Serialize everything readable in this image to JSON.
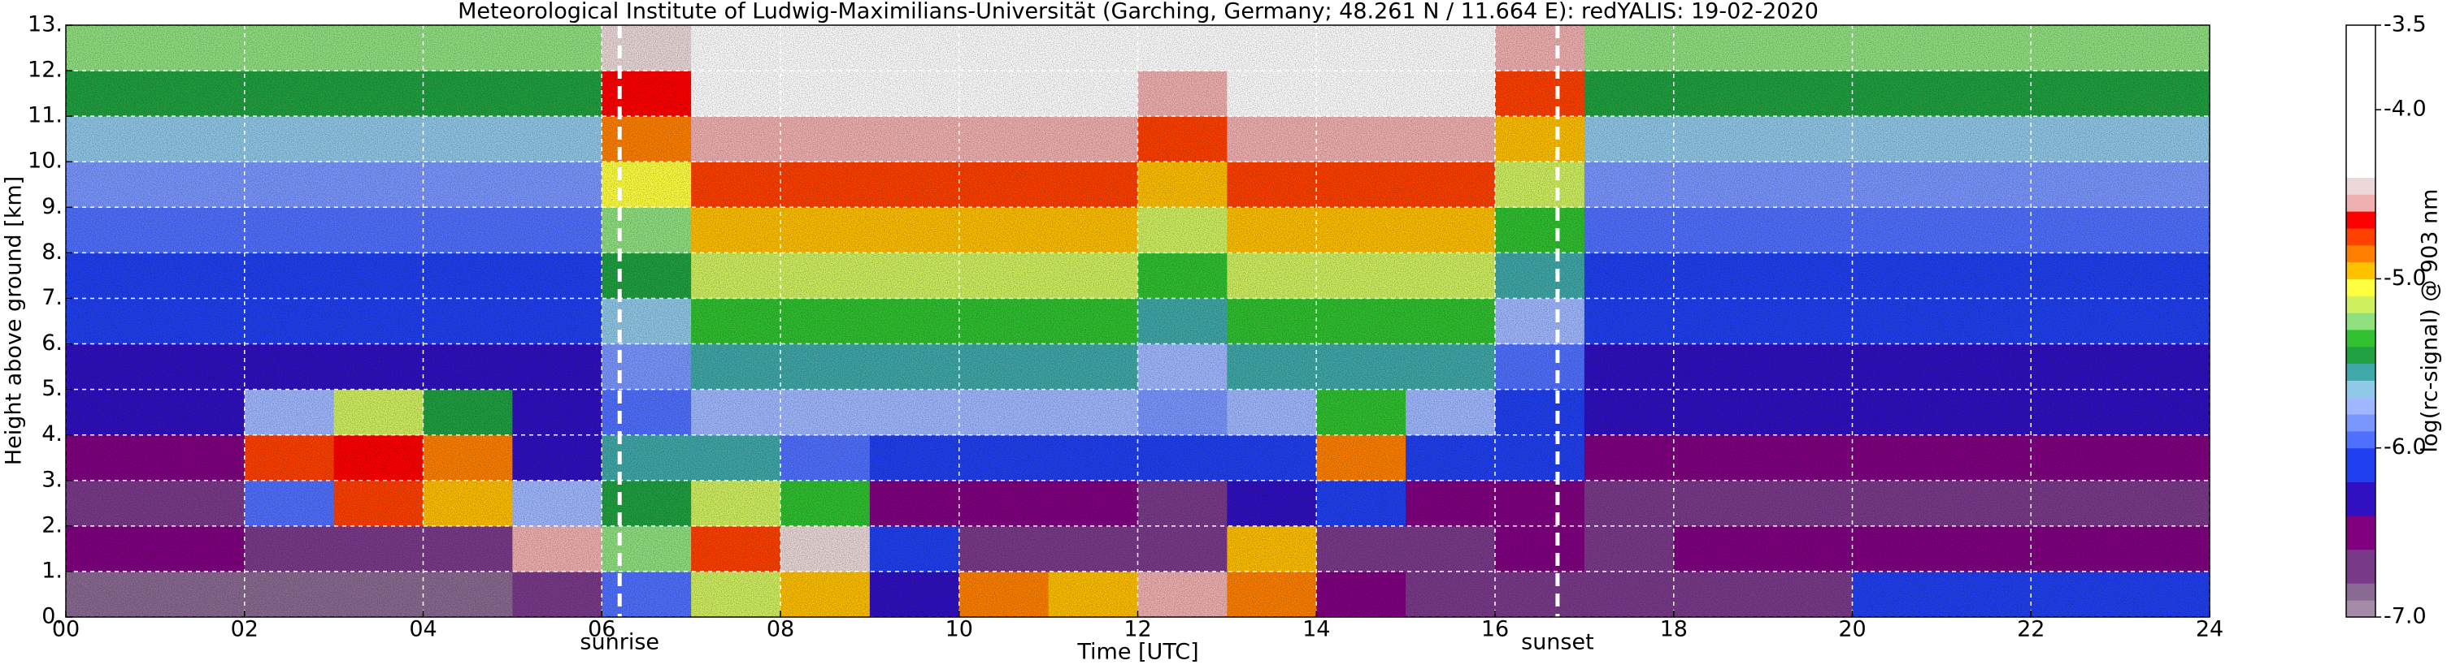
{
  "chart_data": {
    "type": "heatmap",
    "title": "Meteorological Institute of Ludwig-Maximilians-Universität (Garching, Germany; 48.261 N / 11.664 E):    redYALIS: 19-02-2020",
    "x_label": "Time [UTC]",
    "y_label": "Height above ground [km]",
    "colorbar_label": "log(rc-signal) @ 903 nm",
    "xlim": [
      0,
      24
    ],
    "xticks": [
      {
        "value": 0,
        "label": "00"
      },
      {
        "value": 2,
        "label": "02"
      },
      {
        "value": 4,
        "label": "04"
      },
      {
        "value": 6,
        "label": "06"
      },
      {
        "value": 8,
        "label": "08"
      },
      10,
      12,
      14,
      16,
      18,
      20,
      22,
      24
    ],
    "ylim": [
      0,
      13
    ],
    "yticks": [
      {
        "value": 0,
        "label": "0."
      },
      {
        "value": 1,
        "label": "1."
      },
      {
        "value": 2,
        "label": "2."
      },
      {
        "value": 3,
        "label": "3."
      },
      {
        "value": 4,
        "label": "4."
      },
      {
        "value": 5,
        "label": "5."
      },
      {
        "value": 6,
        "label": "6."
      },
      {
        "value": 7,
        "label": "7."
      },
      {
        "value": 8,
        "label": "8."
      },
      {
        "value": 9,
        "label": "9."
      },
      {
        "value": 10,
        "label": "10."
      },
      {
        "value": 11,
        "label": "11."
      },
      {
        "value": 12,
        "label": "12."
      },
      {
        "value": 13,
        "label": "13."
      }
    ],
    "zlim": [
      -7,
      -3.5
    ],
    "zticks": [
      -3.5,
      {
        "value": -4,
        "label": "-4.0"
      },
      {
        "value": -5,
        "label": "-5.0"
      },
      {
        "value": -6,
        "label": "-6.0"
      },
      {
        "value": -7,
        "label": "-7.0"
      }
    ],
    "grid": true,
    "colorscale": [
      [
        -7.0,
        "#a48ca8"
      ],
      [
        -6.9,
        "#8a6a92"
      ],
      [
        -6.8,
        "#7a3a8a"
      ],
      [
        -6.6,
        "#800080"
      ],
      [
        -6.4,
        "#3010c0"
      ],
      [
        -6.2,
        "#2040f0"
      ],
      [
        -6.0,
        "#5070ff"
      ],
      [
        -5.9,
        "#7a96ff"
      ],
      [
        -5.8,
        "#a0b8ff"
      ],
      [
        -5.7,
        "#90c8e8"
      ],
      [
        -5.6,
        "#40a8a8"
      ],
      [
        -5.5,
        "#20a040"
      ],
      [
        -5.4,
        "#30c030"
      ],
      [
        -5.3,
        "#90e080"
      ],
      [
        -5.2,
        "#d0f060"
      ],
      [
        -5.1,
        "#ffff40"
      ],
      [
        -5.0,
        "#ffc000"
      ],
      [
        -4.9,
        "#ff8000"
      ],
      [
        -4.8,
        "#ff4000"
      ],
      [
        -4.7,
        "#ff0000"
      ],
      [
        -4.6,
        "#f0b0b0"
      ],
      [
        -4.5,
        "#ecd8d8"
      ],
      [
        -4.4,
        "#ffffff"
      ]
    ],
    "annotations": [
      {
        "text": "sunrise",
        "x": 6.2
      },
      {
        "text": "sunset",
        "x": 16.7
      }
    ],
    "x": [
      0.5,
      1.5,
      2.5,
      3.5,
      4.5,
      5.5,
      6.5,
      7.5,
      8.5,
      9.5,
      10.5,
      11.5,
      12.5,
      13.5,
      14.5,
      15.5,
      16.5,
      17.5,
      18.5,
      19.5,
      20.5,
      21.5,
      22.5,
      23.5
    ],
    "y": [
      0.5,
      1.5,
      2.5,
      3.5,
      4.5,
      5.5,
      6.5,
      7.5,
      8.5,
      9.5,
      10.5,
      11.5,
      12.5
    ],
    "z": [
      [
        -6.9,
        -6.9,
        -6.9,
        -6.9,
        -6.9,
        -6.8,
        -6.0,
        -5.2,
        -5.0,
        -6.3,
        -4.9,
        -5.0,
        -4.6,
        -4.9,
        -6.6,
        -6.8,
        -6.8,
        -6.8,
        -6.8,
        -6.8,
        -6.2,
        -6.1,
        -6.1,
        -6.2
      ],
      [
        -6.6,
        -6.6,
        -6.7,
        -6.8,
        -6.8,
        -4.6,
        -5.3,
        -4.8,
        -4.5,
        -6.2,
        -6.7,
        -6.8,
        -6.7,
        -5.0,
        -6.8,
        -6.7,
        -6.6,
        -6.7,
        -6.5,
        -6.5,
        -6.5,
        -6.5,
        -6.5,
        -6.5
      ],
      [
        -6.8,
        -6.8,
        -6.0,
        -4.8,
        -5.0,
        -5.8,
        -5.5,
        -5.2,
        -5.4,
        -6.5,
        -6.5,
        -6.5,
        -6.7,
        -6.4,
        -6.2,
        -6.6,
        -6.6,
        -6.8,
        -6.8,
        -6.8,
        -6.8,
        -6.8,
        -6.8,
        -6.8
      ],
      [
        -6.6,
        -6.6,
        -4.8,
        -4.7,
        -4.9,
        -6.3,
        -5.6,
        -5.6,
        -6.0,
        -6.1,
        -6.1,
        -6.1,
        -6.1,
        -6.1,
        -4.9,
        -6.1,
        -6.2,
        -6.6,
        -6.6,
        -6.6,
        -6.6,
        -6.6,
        -6.6,
        -6.6
      ],
      [
        -6.4,
        -6.4,
        -5.8,
        -5.2,
        -5.5,
        -6.4,
        -6.0,
        -5.8,
        -5.8,
        -5.8,
        -5.8,
        -5.8,
        -5.9,
        -5.8,
        -5.4,
        -5.8,
        -6.1,
        -6.4,
        -6.4,
        -6.4,
        -6.4,
        -6.4,
        -6.4,
        -6.4
      ],
      [
        -6.3,
        -6.3,
        -6.3,
        -6.3,
        -6.3,
        -6.3,
        -5.9,
        -5.6,
        -5.6,
        -5.6,
        -5.6,
        -5.6,
        -5.8,
        -5.6,
        -5.6,
        -5.6,
        -6.0,
        -6.3,
        -6.3,
        -6.3,
        -6.3,
        -6.3,
        -6.3,
        -6.3
      ],
      [
        -6.2,
        -6.2,
        -6.2,
        -6.2,
        -6.2,
        -6.2,
        -5.7,
        -5.4,
        -5.4,
        -5.4,
        -5.4,
        -5.4,
        -5.6,
        -5.4,
        -5.4,
        -5.4,
        -5.8,
        -6.2,
        -6.2,
        -6.2,
        -6.2,
        -6.2,
        -6.2,
        -6.2
      ],
      [
        -6.1,
        -6.1,
        -6.1,
        -6.1,
        -6.1,
        -6.1,
        -5.5,
        -5.2,
        -5.2,
        -5.2,
        -5.2,
        -5.2,
        -5.4,
        -5.2,
        -5.2,
        -5.2,
        -5.6,
        -6.1,
        -6.1,
        -6.1,
        -6.1,
        -6.1,
        -6.1,
        -6.1
      ],
      [
        -6.0,
        -6.0,
        -6.0,
        -6.0,
        -6.0,
        -6.0,
        -5.3,
        -5.0,
        -5.0,
        -5.0,
        -5.0,
        -5.0,
        -5.2,
        -5.0,
        -5.0,
        -5.0,
        -5.4,
        -6.0,
        -6.0,
        -6.0,
        -6.0,
        -6.0,
        -6.0,
        -6.0
      ],
      [
        -5.9,
        -5.9,
        -5.9,
        -5.9,
        -5.9,
        -5.9,
        -5.1,
        -4.8,
        -4.8,
        -4.8,
        -4.8,
        -4.8,
        -5.0,
        -4.8,
        -4.8,
        -4.8,
        -5.2,
        -5.9,
        -5.9,
        -5.9,
        -5.9,
        -5.9,
        -5.9,
        -5.9
      ],
      [
        -5.7,
        -5.7,
        -5.7,
        -5.7,
        -5.7,
        -5.7,
        -4.9,
        -4.6,
        -4.6,
        -4.6,
        -4.6,
        -4.6,
        -4.8,
        -4.6,
        -4.6,
        -4.6,
        -5.0,
        -5.7,
        -5.7,
        -5.7,
        -5.7,
        -5.7,
        -5.7,
        -5.7
      ],
      [
        -5.5,
        -5.5,
        -5.5,
        -5.5,
        -5.5,
        -5.5,
        -4.7,
        -4.4,
        -4.4,
        -4.4,
        -4.4,
        -4.4,
        -4.6,
        -4.4,
        -4.4,
        -4.4,
        -4.8,
        -5.5,
        -5.5,
        -5.5,
        -5.5,
        -5.5,
        -5.5,
        -5.5
      ],
      [
        -5.3,
        -5.3,
        -5.3,
        -5.3,
        -5.3,
        -5.3,
        -4.5,
        -4.2,
        -4.2,
        -4.2,
        -4.2,
        -4.2,
        -4.4,
        -4.2,
        -4.2,
        -4.2,
        -4.6,
        -5.3,
        -5.3,
        -5.3,
        -5.3,
        -5.3,
        -5.3,
        -5.3
      ]
    ]
  }
}
